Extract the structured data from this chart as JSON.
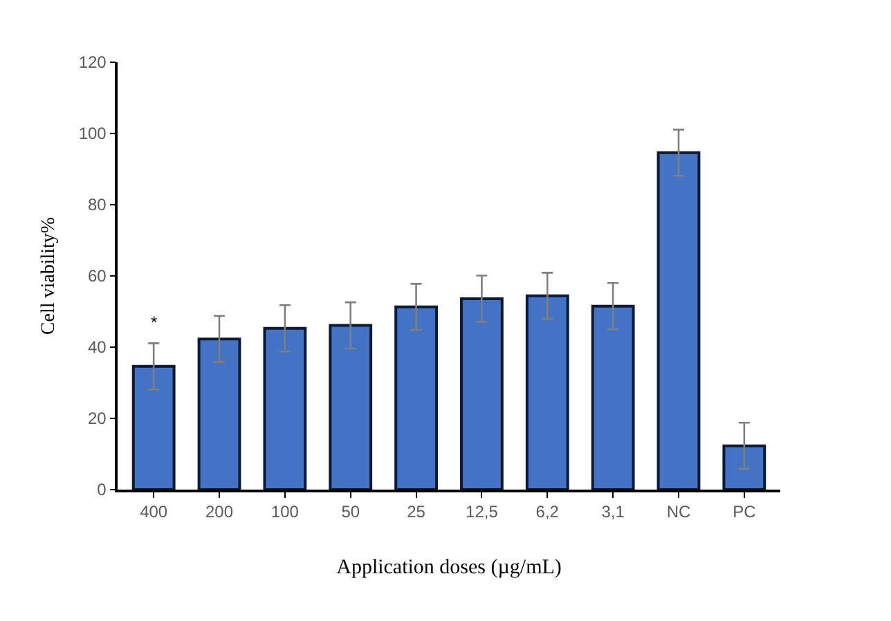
{
  "chart_data": {
    "type": "bar",
    "xlabel": "Application doses (µg/mL)",
    "ylabel": "Cell viability%",
    "categories": [
      "400",
      "200",
      "100",
      "50",
      "25",
      "12,5",
      "6,2",
      "3,1",
      "NC",
      "PC"
    ],
    "values": [
      34.6,
      42.3,
      45.3,
      46.1,
      51.3,
      53.6,
      54.4,
      51.5,
      94.6,
      12.3
    ],
    "errors": [
      6.5,
      6.5,
      6.5,
      6.5,
      6.5,
      6.5,
      6.5,
      6.5,
      6.5,
      6.5
    ],
    "color": "#4472c4",
    "ylim": [
      0,
      120
    ],
    "yticks": [
      0,
      20,
      40,
      60,
      80,
      100,
      120
    ],
    "grid": false,
    "annotations": [
      {
        "text": "*",
        "x": "400",
        "y": 41.1
      }
    ]
  }
}
